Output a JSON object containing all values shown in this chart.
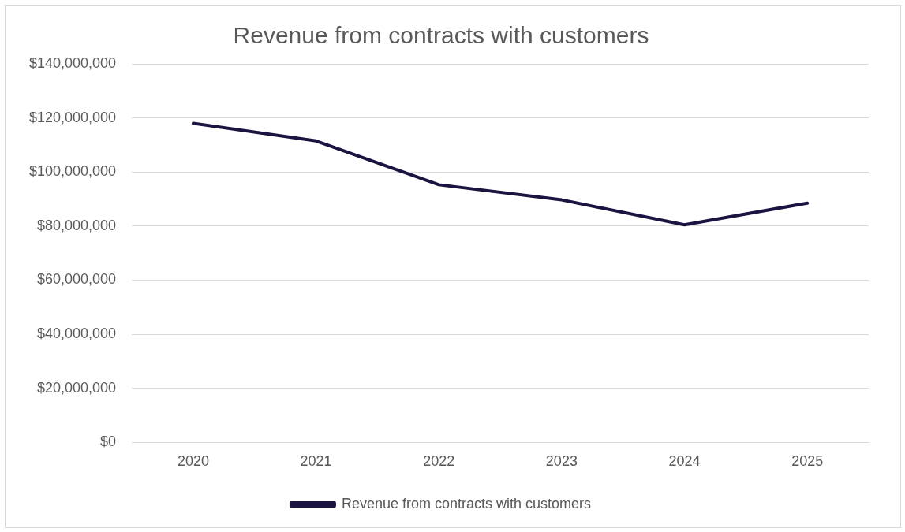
{
  "chart_data": {
    "type": "line",
    "title": "Revenue from contracts with customers",
    "categories": [
      "2020",
      "2021",
      "2022",
      "2023",
      "2024",
      "2025"
    ],
    "series": [
      {
        "name": "Revenue from contracts with customers",
        "color": "#1b1340",
        "values": [
          118000000,
          111500000,
          95300000,
          89700000,
          80500000,
          88500000
        ]
      }
    ],
    "ylim": [
      0,
      140000000
    ],
    "yticks": [
      {
        "value": 0,
        "label": "$0"
      },
      {
        "value": 20000000,
        "label": "$20,000,000"
      },
      {
        "value": 40000000,
        "label": "$40,000,000"
      },
      {
        "value": 60000000,
        "label": "$60,000,000"
      },
      {
        "value": 80000000,
        "label": "$80,000,000"
      },
      {
        "value": 100000000,
        "label": "$100,000,000"
      },
      {
        "value": 120000000,
        "label": "$120,000,000"
      },
      {
        "value": 140000000,
        "label": "$140,000,000"
      }
    ],
    "grid": "y",
    "legend": "bottom",
    "marker": "none",
    "line_style": "solid"
  }
}
